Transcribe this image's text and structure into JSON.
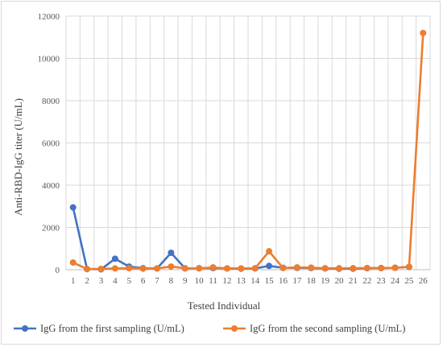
{
  "chart_data": {
    "type": "line",
    "xlabel": "Tested Individual",
    "ylabel": "Anti-RBD-IgG titer (U/mL)",
    "x": [
      1,
      2,
      3,
      4,
      5,
      6,
      7,
      8,
      9,
      10,
      11,
      12,
      13,
      14,
      15,
      16,
      17,
      18,
      19,
      20,
      21,
      22,
      23,
      24,
      25,
      26
    ],
    "yticks": [
      0,
      2000,
      4000,
      6000,
      8000,
      10000,
      12000
    ],
    "ylim": [
      0,
      12000
    ],
    "grid": true,
    "legend_position": "bottom",
    "series": [
      {
        "name": "IgG from the first sampling (U/mL)",
        "color": "#4472C4",
        "values": [
          2950,
          30,
          20,
          520,
          150,
          70,
          60,
          800,
          60,
          70,
          80,
          60,
          50,
          60,
          180,
          90,
          90,
          80,
          60,
          50,
          50,
          70,
          80,
          90,
          130,
          null
        ]
      },
      {
        "name": "IgG from the second sampling (U/mL)",
        "color": "#ED7D31",
        "values": [
          340,
          30,
          40,
          60,
          70,
          50,
          60,
          150,
          70,
          60,
          110,
          60,
          60,
          70,
          870,
          80,
          110,
          100,
          70,
          70,
          70,
          80,
          80,
          90,
          140,
          11200
        ]
      }
    ]
  }
}
